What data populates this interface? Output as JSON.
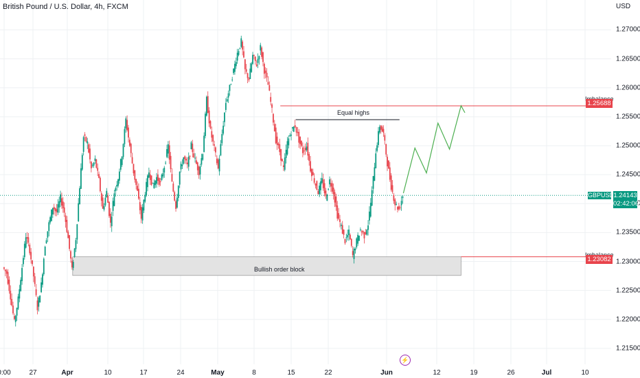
{
  "header": {
    "title": "British Pound / U.S. Dollar, 4h, FXCM",
    "currency": "USD"
  },
  "colors": {
    "up": "#089981",
    "down": "#e8444c",
    "grid": "#eef0f3",
    "imbalance_line": "#e8444c",
    "projection": "#4caf50"
  },
  "y_ticks": [
    "1.27000",
    "1.26500",
    "1.26000",
    "1.25500",
    "1.25000",
    "1.24500",
    "1.24000",
    "1.23500",
    "1.23000",
    "1.22500",
    "1.22000",
    "1.21500"
  ],
  "x_ticks": [
    {
      "label": "0:00",
      "bold": false
    },
    {
      "label": "27",
      "bold": false
    },
    {
      "label": "Apr",
      "bold": true
    },
    {
      "label": "10",
      "bold": false
    },
    {
      "label": "17",
      "bold": false
    },
    {
      "label": "24",
      "bold": false
    },
    {
      "label": "May",
      "bold": true
    },
    {
      "label": "8",
      "bold": false
    },
    {
      "label": "15",
      "bold": false
    },
    {
      "label": "22",
      "bold": false
    },
    {
      "label": "Jun",
      "bold": true
    },
    {
      "label": "12",
      "bold": false
    },
    {
      "label": "19",
      "bold": false
    },
    {
      "label": "26",
      "bold": false
    },
    {
      "label": "Jul",
      "bold": true
    },
    {
      "label": "10",
      "bold": false
    }
  ],
  "annotations": {
    "imbalance_top_label": "Imbalance",
    "imbalance_top_price": "1.25688",
    "imbalance_bottom_label": "Imbalance",
    "imbalance_bottom_price": "1.23082",
    "equal_highs": "Equal highs",
    "order_block": "Bullish order block",
    "symbol": "GBPUSD",
    "current_price": "1.24143",
    "countdown": "02:42:06"
  },
  "chart_data": {
    "type": "candlestick",
    "title": "British Pound / U.S. Dollar, 4h, FXCM",
    "ylabel": "USD",
    "ylim": [
      1.2125,
      1.2735
    ],
    "price_path": [
      [
        0,
        1.229
      ],
      [
        1,
        1.228
      ],
      [
        2,
        1.224
      ],
      [
        3,
        1.2195
      ],
      [
        4,
        1.2235
      ],
      [
        5,
        1.229
      ],
      [
        6,
        1.2345
      ],
      [
        7,
        1.232
      ],
      [
        8,
        1.2275
      ],
      [
        9,
        1.222
      ],
      [
        10,
        1.226
      ],
      [
        11,
        1.233
      ],
      [
        12,
        1.2365
      ],
      [
        13,
        1.2395
      ],
      [
        14,
        1.2385
      ],
      [
        15,
        1.241
      ],
      [
        16,
        1.2385
      ],
      [
        17,
        1.234
      ],
      [
        18,
        1.2285
      ],
      [
        19,
        1.234
      ],
      [
        20,
        1.243
      ],
      [
        21,
        1.2515
      ],
      [
        22,
        1.2505
      ],
      [
        23,
        1.246
      ],
      [
        24,
        1.2475
      ],
      [
        25,
        1.244
      ],
      [
        26,
        1.239
      ],
      [
        27,
        1.242
      ],
      [
        28,
        1.2365
      ],
      [
        29,
        1.242
      ],
      [
        30,
        1.2445
      ],
      [
        31,
        1.2485
      ],
      [
        32,
        1.2545
      ],
      [
        33,
        1.25
      ],
      [
        34,
        1.2455
      ],
      [
        35,
        1.242
      ],
      [
        36,
        1.2375
      ],
      [
        37,
        1.242
      ],
      [
        38,
        1.2455
      ],
      [
        39,
        1.243
      ],
      [
        40,
        1.2445
      ],
      [
        41,
        1.2435
      ],
      [
        42,
        1.2465
      ],
      [
        43,
        1.25
      ],
      [
        44,
        1.2435
      ],
      [
        45,
        1.2395
      ],
      [
        46,
        1.2455
      ],
      [
        47,
        1.248
      ],
      [
        48,
        1.2465
      ],
      [
        49,
        1.25
      ],
      [
        50,
        1.2475
      ],
      [
        51,
        1.2455
      ],
      [
        52,
        1.249
      ],
      [
        53,
        1.258
      ],
      [
        54,
        1.2525
      ],
      [
        55,
        1.2495
      ],
      [
        56,
        1.246
      ],
      [
        57,
        1.252
      ],
      [
        58,
        1.2575
      ],
      [
        59,
        1.26
      ],
      [
        60,
        1.263
      ],
      [
        61,
        1.266
      ],
      [
        62,
        1.268
      ],
      [
        63,
        1.263
      ],
      [
        64,
        1.2615
      ],
      [
        65,
        1.2655
      ],
      [
        66,
        1.264
      ],
      [
        67,
        1.267
      ],
      [
        68,
        1.263
      ],
      [
        69,
        1.2605
      ],
      [
        70,
        1.256
      ],
      [
        71,
        1.251
      ],
      [
        72,
        1.249
      ],
      [
        73,
        1.246
      ],
      [
        74,
        1.2505
      ],
      [
        75,
        1.2525
      ],
      [
        76,
        1.2535
      ],
      [
        77,
        1.251
      ],
      [
        78,
        1.249
      ],
      [
        79,
        1.25
      ],
      [
        80,
        1.246
      ],
      [
        81,
        1.244
      ],
      [
        82,
        1.242
      ],
      [
        83,
        1.244
      ],
      [
        84,
        1.241
      ],
      [
        85,
        1.244
      ],
      [
        86,
        1.242
      ],
      [
        87,
        1.238
      ],
      [
        88,
        1.236
      ],
      [
        89,
        1.2335
      ],
      [
        90,
        1.235
      ],
      [
        91,
        1.231
      ],
      [
        92,
        1.2335
      ],
      [
        93,
        1.2355
      ],
      [
        94,
        1.2345
      ],
      [
        95,
        1.2365
      ],
      [
        96,
        1.242
      ],
      [
        97,
        1.249
      ],
      [
        98,
        1.2535
      ],
      [
        99,
        1.252
      ],
      [
        100,
        1.247
      ],
      [
        101,
        1.243
      ],
      [
        102,
        1.24
      ],
      [
        103,
        1.239
      ],
      [
        104,
        1.2414
      ]
    ],
    "projection": [
      [
        104,
        1.2418
      ],
      [
        107,
        1.2496
      ],
      [
        110,
        1.2453
      ],
      [
        113,
        1.2539
      ],
      [
        116,
        1.2494
      ],
      [
        119,
        1.2569
      ],
      [
        120,
        1.2557
      ]
    ],
    "levels": {
      "imbalance_top": 1.25688,
      "imbalance_bottom": 1.23082,
      "current": 1.24143,
      "equal_highs": 1.2545,
      "order_block_top": 1.23082,
      "order_block_bottom": 1.2276
    }
  }
}
